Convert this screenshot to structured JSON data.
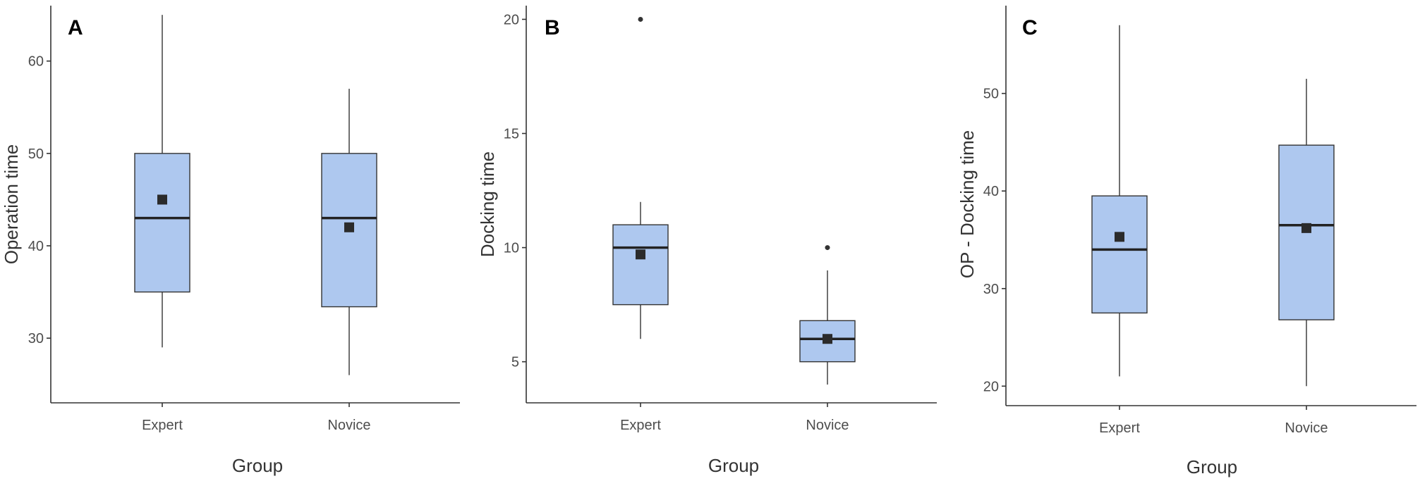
{
  "chart_data": [
    {
      "type": "box",
      "panel_label": "A",
      "xlabel": "Group",
      "ylabel": "Operation time",
      "categories": [
        "Expert",
        "Novice"
      ],
      "ylim": [
        23,
        66
      ],
      "yticks": [
        30,
        40,
        50,
        60
      ],
      "boxes": [
        {
          "group": "Expert",
          "whisker_low": 29,
          "q1": 35,
          "median": 43,
          "q3": 50,
          "whisker_high": 65,
          "mean": 45,
          "outliers": []
        },
        {
          "group": "Novice",
          "whisker_low": 26,
          "q1": 33.4,
          "median": 43,
          "q3": 50,
          "whisker_high": 57,
          "mean": 42,
          "outliers": []
        }
      ],
      "box_color": "#aec8ef",
      "grid": false
    },
    {
      "type": "box",
      "panel_label": "B",
      "xlabel": "Group",
      "ylabel": "Docking time",
      "categories": [
        "Expert",
        "Novice"
      ],
      "ylim": [
        3.2,
        20.6
      ],
      "yticks": [
        5,
        10,
        15,
        20
      ],
      "boxes": [
        {
          "group": "Expert",
          "whisker_low": 6,
          "q1": 7.5,
          "median": 10,
          "q3": 11,
          "whisker_high": 12,
          "mean": 9.7,
          "outliers": [
            20
          ]
        },
        {
          "group": "Novice",
          "whisker_low": 4,
          "q1": 5,
          "median": 6,
          "q3": 6.8,
          "whisker_high": 9,
          "mean": 6,
          "outliers": [
            10
          ]
        }
      ],
      "box_color": "#aec8ef",
      "grid": false
    },
    {
      "type": "box",
      "panel_label": "C",
      "xlabel": "Group",
      "ylabel": "OP - Docking time",
      "categories": [
        "Expert",
        "Novice"
      ],
      "ylim": [
        18,
        59
      ],
      "yticks": [
        20,
        30,
        40,
        50
      ],
      "boxes": [
        {
          "group": "Expert",
          "whisker_low": 21,
          "q1": 27.5,
          "median": 34,
          "q3": 39.5,
          "whisker_high": 57,
          "mean": 35.3,
          "outliers": []
        },
        {
          "group": "Novice",
          "whisker_low": 20,
          "q1": 26.8,
          "median": 36.5,
          "q3": 44.7,
          "whisker_high": 51.5,
          "mean": 36.2,
          "outliers": []
        }
      ],
      "box_color": "#aec8ef",
      "grid": false
    }
  ]
}
